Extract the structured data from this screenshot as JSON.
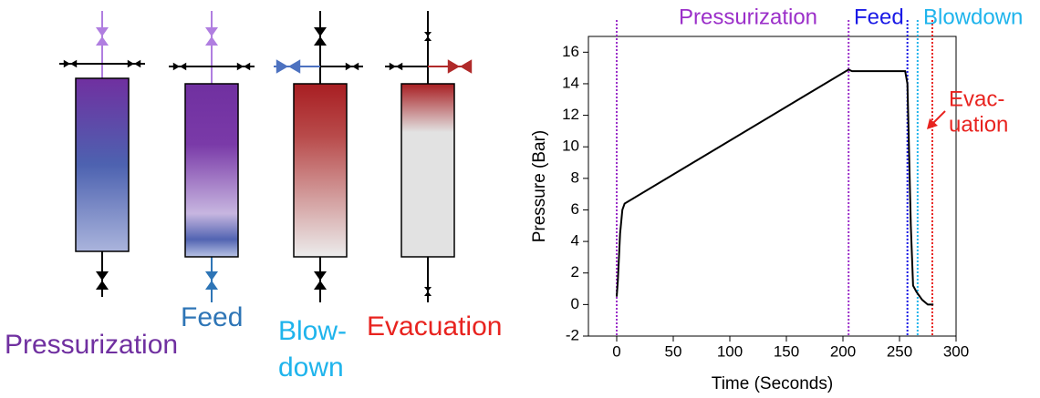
{
  "diagram": {
    "columns": [
      {
        "label_lines": [
          "Pressurization"
        ],
        "color": "#7030a0"
      },
      {
        "label_lines": [
          "Feed"
        ],
        "color": "#2e75b6"
      },
      {
        "label_lines": [
          "Blow-",
          "down"
        ],
        "color": "#1fb4ec"
      },
      {
        "label_lines": [
          "Evacuation"
        ],
        "color": "#e8231f"
      }
    ]
  },
  "chart_data": {
    "type": "line",
    "x_label": "Time (Seconds)",
    "y_label": "Pressure (Bar)",
    "xlim": [
      -25,
      300
    ],
    "ylim": [
      -2,
      17
    ],
    "xticks": [
      0,
      50,
      100,
      150,
      200,
      250,
      300
    ],
    "yticks": [
      -2,
      0,
      2,
      4,
      6,
      8,
      10,
      12,
      14,
      16
    ],
    "series": [
      {
        "color": "#000000",
        "x": [
          0,
          1,
          3,
          5,
          7,
          205,
          208,
          255,
          257,
          260,
          262,
          265,
          270,
          275,
          280
        ],
        "values": [
          0.5,
          1.5,
          4.5,
          6,
          6.4,
          14.9,
          14.8,
          14.8,
          14,
          5,
          1.2,
          0.8,
          0.3,
          0,
          0
        ]
      }
    ],
    "phase_lines": [
      {
        "x": 0,
        "color": "#9b2fc9"
      },
      {
        "x": 205,
        "color": "#9b2fc9"
      },
      {
        "x": 257,
        "color": "#1a1ae6"
      },
      {
        "x": 266,
        "color": "#1fb4ec"
      },
      {
        "x": 279,
        "color": "#e8231f"
      }
    ],
    "annotations": [
      {
        "lines": [
          "Pressurization"
        ],
        "color": "#9b2fc9"
      },
      {
        "lines": [
          "Feed"
        ],
        "color": "#1a1ae6"
      },
      {
        "lines": [
          "Blowdown"
        ],
        "color": "#1fb4ec"
      },
      {
        "lines": [
          "Evac-",
          "uation"
        ],
        "color": "#e8231f"
      }
    ]
  }
}
